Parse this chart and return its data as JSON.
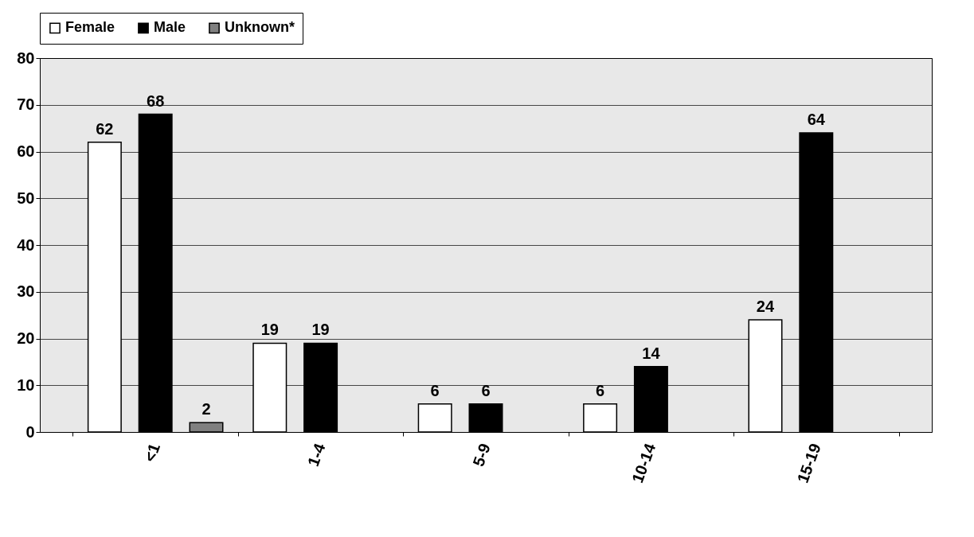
{
  "chart_data": {
    "type": "bar",
    "categories": [
      "<1",
      "1-4",
      "5-9",
      "10-14",
      "15-19"
    ],
    "series": [
      {
        "name": "Female",
        "color": "#ffffff",
        "values": [
          62,
          19,
          6,
          6,
          24
        ]
      },
      {
        "name": "Male",
        "color": "#000000",
        "values": [
          68,
          19,
          6,
          14,
          64
        ]
      },
      {
        "name": "Unknown*",
        "color": "#808080",
        "values": [
          2,
          null,
          null,
          null,
          null
        ]
      }
    ],
    "ylim": [
      0,
      80
    ],
    "yticks": [
      0,
      10,
      20,
      30,
      40,
      50,
      60,
      70,
      80
    ],
    "grid": "y",
    "legend": "top",
    "data_labels": true
  }
}
